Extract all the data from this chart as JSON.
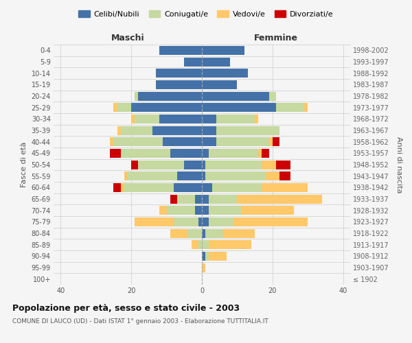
{
  "age_groups": [
    "100+",
    "95-99",
    "90-94",
    "85-89",
    "80-84",
    "75-79",
    "70-74",
    "65-69",
    "60-64",
    "55-59",
    "50-54",
    "45-49",
    "40-44",
    "35-39",
    "30-34",
    "25-29",
    "20-24",
    "15-19",
    "10-14",
    "5-9",
    "0-4"
  ],
  "birth_years": [
    "≤ 1902",
    "1903-1907",
    "1908-1912",
    "1913-1917",
    "1918-1922",
    "1923-1927",
    "1928-1932",
    "1933-1937",
    "1938-1942",
    "1943-1947",
    "1948-1952",
    "1953-1957",
    "1958-1962",
    "1963-1967",
    "1968-1972",
    "1973-1977",
    "1978-1982",
    "1983-1987",
    "1988-1992",
    "1993-1997",
    "1998-2002"
  ],
  "male": {
    "celibi": [
      0,
      0,
      0,
      0,
      0,
      1,
      2,
      2,
      8,
      7,
      5,
      9,
      11,
      14,
      12,
      20,
      18,
      13,
      13,
      5,
      12
    ],
    "coniugati": [
      0,
      0,
      0,
      1,
      4,
      7,
      8,
      5,
      14,
      14,
      13,
      14,
      14,
      9,
      7,
      4,
      1,
      0,
      0,
      0,
      0
    ],
    "vedovi": [
      0,
      0,
      0,
      2,
      5,
      11,
      2,
      0,
      1,
      1,
      0,
      0,
      1,
      1,
      1,
      1,
      0,
      0,
      0,
      0,
      0
    ],
    "divorziati": [
      0,
      0,
      0,
      0,
      0,
      0,
      0,
      2,
      2,
      0,
      2,
      3,
      0,
      0,
      0,
      0,
      0,
      0,
      0,
      0,
      0
    ]
  },
  "female": {
    "nubili": [
      0,
      0,
      1,
      0,
      1,
      2,
      2,
      2,
      3,
      1,
      1,
      2,
      4,
      4,
      4,
      21,
      19,
      10,
      13,
      8,
      12
    ],
    "coniugate": [
      0,
      0,
      1,
      2,
      5,
      7,
      9,
      8,
      14,
      17,
      16,
      14,
      15,
      18,
      11,
      8,
      2,
      0,
      0,
      0,
      0
    ],
    "vedove": [
      0,
      1,
      5,
      12,
      9,
      21,
      15,
      24,
      13,
      4,
      4,
      1,
      1,
      0,
      1,
      1,
      0,
      0,
      0,
      0,
      0
    ],
    "divorziate": [
      0,
      0,
      0,
      0,
      0,
      0,
      0,
      0,
      0,
      3,
      4,
      2,
      2,
      0,
      0,
      0,
      0,
      0,
      0,
      0,
      0
    ]
  },
  "colors": {
    "celibi": "#4472a8",
    "coniugati": "#c5d9a0",
    "vedovi": "#ffc869",
    "divorziati": "#cc0000"
  },
  "title": "Popolazione per età, sesso e stato civile - 2003",
  "subtitle": "COMUNE DI LAUCO (UD) - Dati ISTAT 1° gennaio 2003 - Elaborazione TUTTITALIA.IT",
  "xlabel_left": "Maschi",
  "xlabel_right": "Femmine",
  "ylabel_left": "Fasce di età",
  "ylabel_right": "Anni di nascita",
  "xlim": 42,
  "bg_color": "#f5f5f5",
  "legend_labels": [
    "Celibi/Nubili",
    "Coniugati/e",
    "Vedovi/e",
    "Divorziati/e"
  ]
}
